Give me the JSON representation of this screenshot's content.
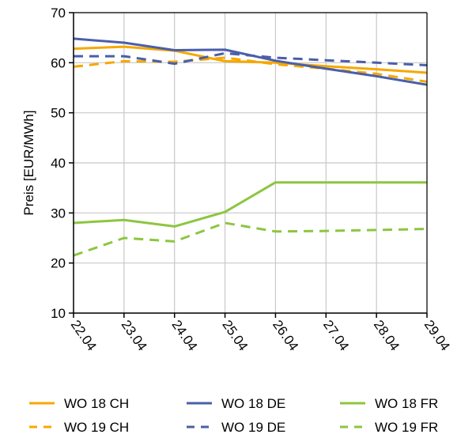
{
  "chart_data": {
    "type": "line",
    "ylabel": "Preis [EUR/MWh]",
    "xlabel": "",
    "ylim": [
      10,
      70
    ],
    "yticks": [
      10,
      20,
      30,
      40,
      50,
      60,
      70
    ],
    "categories": [
      "22.04",
      "23.04",
      "24.04",
      "25.04",
      "26.04",
      "27.04",
      "28.04",
      "29.04"
    ],
    "grid": true,
    "legend_position": "bottom",
    "series": [
      {
        "name": "WO 18 CH",
        "color": "#F5A800",
        "dash": "solid",
        "values": [
          62.8,
          63.2,
          62.4,
          60.3,
          60.0,
          59.3,
          58.7,
          58.0
        ]
      },
      {
        "name": "WO 19 CH",
        "color": "#F5A800",
        "dash": "dashed",
        "values": [
          59.2,
          60.3,
          60.2,
          61.0,
          59.7,
          58.8,
          57.8,
          56.2
        ]
      },
      {
        "name": "WO 18 DE",
        "color": "#4A5FAA",
        "dash": "solid",
        "values": [
          64.8,
          64.0,
          62.5,
          62.6,
          60.4,
          58.8,
          57.3,
          55.6
        ]
      },
      {
        "name": "WO 19 DE",
        "color": "#4A5FAA",
        "dash": "dashed",
        "values": [
          61.3,
          61.3,
          59.8,
          61.9,
          61.0,
          60.5,
          60.0,
          59.5
        ]
      },
      {
        "name": "WO 18 FR",
        "color": "#8CC63F",
        "dash": "solid",
        "values": [
          28.0,
          28.6,
          27.3,
          30.2,
          36.1,
          36.1,
          36.1,
          36.1
        ]
      },
      {
        "name": "WO 19 FR",
        "color": "#8CC63F",
        "dash": "dashed",
        "values": [
          21.5,
          25.0,
          24.3,
          28.0,
          26.3,
          26.4,
          26.6,
          26.8
        ]
      }
    ]
  }
}
